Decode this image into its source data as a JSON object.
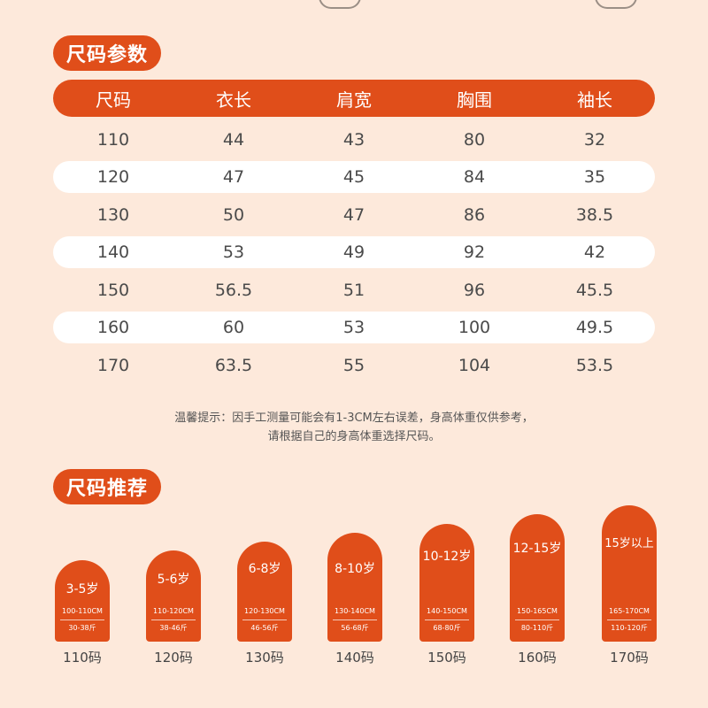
{
  "size_section": {
    "title": "尺码参数"
  },
  "size_table": {
    "headers": [
      "尺码",
      "衣长",
      "肩宽",
      "胸围",
      "袖长"
    ],
    "rows": [
      [
        "110",
        "44",
        "43",
        "80",
        "32"
      ],
      [
        "120",
        "47",
        "45",
        "84",
        "35"
      ],
      [
        "130",
        "50",
        "47",
        "86",
        "38.5"
      ],
      [
        "140",
        "53",
        "49",
        "92",
        "42"
      ],
      [
        "150",
        "56.5",
        "51",
        "96",
        "45.5"
      ],
      [
        "160",
        "60",
        "53",
        "100",
        "49.5"
      ],
      [
        "170",
        "63.5",
        "55",
        "104",
        "53.5"
      ]
    ]
  },
  "note": {
    "line1": "温馨提示：因手工测量可能会有1-3CM左右误差，身高体重仅供参考，",
    "line2": "请根据自己的身高体重选择尺码。"
  },
  "recommend_section": {
    "title": "尺码推荐"
  },
  "recommendations": [
    {
      "age": "3-5岁",
      "height": "100-110CM",
      "weight": "30-38斤",
      "size": "110码"
    },
    {
      "age": "5-6岁",
      "height": "110-120CM",
      "weight": "38-46斤",
      "size": "120码"
    },
    {
      "age": "6-8岁",
      "height": "120-130CM",
      "weight": "46-56斤",
      "size": "130码"
    },
    {
      "age": "8-10岁",
      "height": "130-140CM",
      "weight": "56-68斤",
      "size": "140码"
    },
    {
      "age": "10-12岁",
      "height": "140-150CM",
      "weight": "68-80斤",
      "size": "150码"
    },
    {
      "age": "12-15岁",
      "height": "150-165CM",
      "weight": "80-110斤",
      "size": "160码"
    },
    {
      "age": "15岁以上",
      "height": "165-170CM",
      "weight": "110-120斤",
      "size": "170码"
    }
  ],
  "colors": {
    "accent": "#e04e1a",
    "background": "#fde9db",
    "stripe": "#ffffff"
  }
}
